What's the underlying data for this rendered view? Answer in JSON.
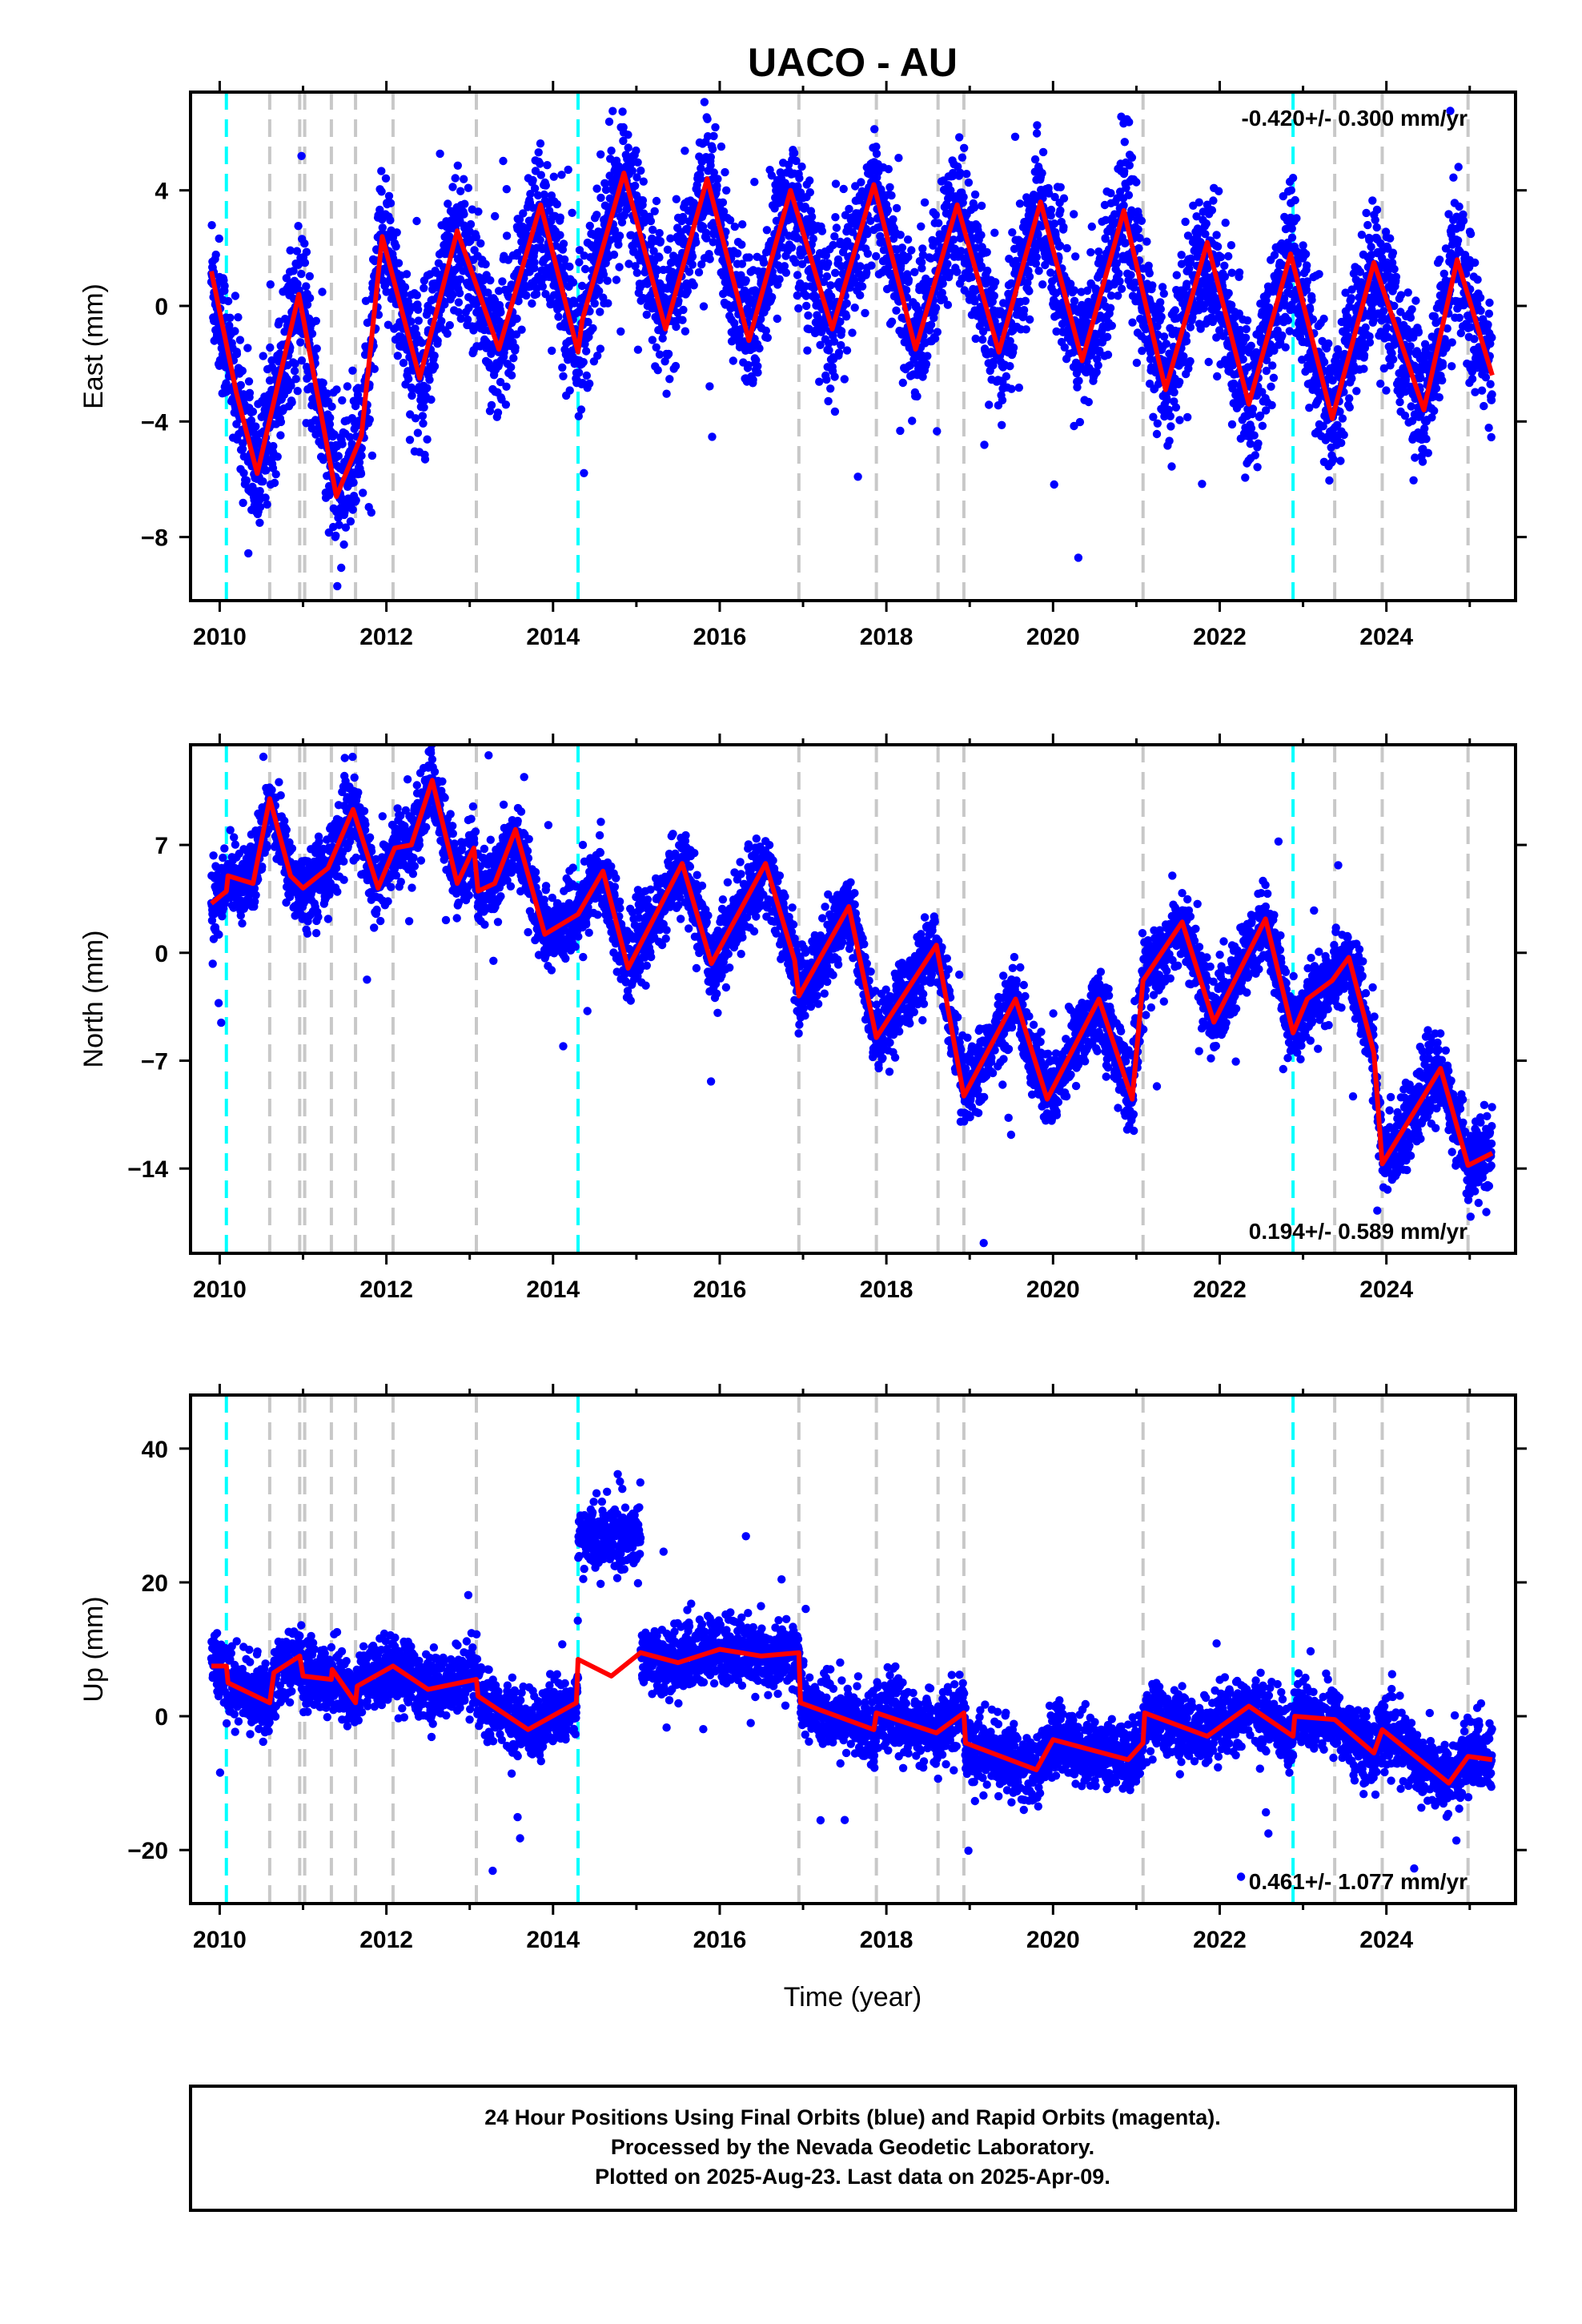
{
  "title": "UACO - AU",
  "xlabel": "Time (year)",
  "colors": {
    "final_orbits": "#0000ff",
    "model": "#ff0000",
    "antenna_change": "#00ffff",
    "other_event": "#c8c8c8"
  },
  "event_lines": {
    "cyan": [
      2010.08,
      2014.3,
      2022.88
    ],
    "gray": [
      2010.6,
      2010.96,
      2011.02,
      2011.34,
      2011.63,
      2012.08,
      2013.08,
      2016.95,
      2017.88,
      2018.62,
      2018.93,
      2021.08,
      2023.38,
      2023.95,
      2024.98
    ]
  },
  "footer": {
    "line1": "24 Hour Positions Using Final Orbits (blue) and Rapid Orbits (magenta).",
    "line2": "Processed by the Nevada Geodetic Laboratory.",
    "line3": "Plotted on 2025-Aug-23. Last data on 2025-Apr-09."
  },
  "chart_data": [
    {
      "type": "scatter",
      "ylabel": "East (mm)",
      "rate_label": "-0.420+/- 0.300 mm/yr",
      "rate_position": "top-right",
      "xlim": [
        2009.65,
        2025.55
      ],
      "ylim": [
        -10.2,
        7.4
      ],
      "x_ticks": [
        2010,
        2012,
        2014,
        2016,
        2018,
        2020,
        2022,
        2024
      ],
      "y_ticks": [
        4,
        0,
        -4,
        -8
      ],
      "y_tick_labels": [
        "4",
        "0",
        "−4",
        "−8"
      ],
      "data_span": [
        2009.9,
        2025.27
      ],
      "model_points": [
        [
          2009.9,
          1.2
        ],
        [
          2010.2,
          -3.0
        ],
        [
          2010.45,
          -5.8
        ],
        [
          2010.95,
          0.4
        ],
        [
          2011.4,
          -6.6
        ],
        [
          2011.7,
          -4.5
        ],
        [
          2011.95,
          2.4
        ],
        [
          2012.4,
          -2.5
        ],
        [
          2012.85,
          2.6
        ],
        [
          2013.35,
          -1.5
        ],
        [
          2013.85,
          3.5
        ],
        [
          2014.3,
          -1.6
        ],
        [
          2014.35,
          -0.5
        ],
        [
          2014.85,
          4.6
        ],
        [
          2015.35,
          -0.8
        ],
        [
          2015.85,
          4.4
        ],
        [
          2016.35,
          -1.2
        ],
        [
          2016.85,
          4.0
        ],
        [
          2017.35,
          -0.8
        ],
        [
          2017.85,
          4.2
        ],
        [
          2018.35,
          -1.5
        ],
        [
          2018.85,
          3.5
        ],
        [
          2019.35,
          -1.6
        ],
        [
          2019.85,
          3.6
        ],
        [
          2020.35,
          -1.9
        ],
        [
          2020.85,
          3.3
        ],
        [
          2021.35,
          -2.9
        ],
        [
          2021.85,
          2.2
        ],
        [
          2022.35,
          -3.4
        ],
        [
          2022.85,
          1.8
        ],
        [
          2023.35,
          -3.9
        ],
        [
          2023.85,
          1.5
        ],
        [
          2024.45,
          -3.6
        ],
        [
          2024.85,
          1.6
        ],
        [
          2025.27,
          -2.4
        ]
      ],
      "scatter_spread": 1.6
    },
    {
      "type": "scatter",
      "ylabel": "North (mm)",
      "rate_label": "0.194+/- 0.589 mm/yr",
      "rate_position": "bottom-right",
      "xlim": [
        2009.65,
        2025.55
      ],
      "ylim": [
        -19.5,
        13.5
      ],
      "x_ticks": [
        2010,
        2012,
        2014,
        2016,
        2018,
        2020,
        2022,
        2024
      ],
      "y_ticks": [
        7,
        0,
        -7,
        -14
      ],
      "y_tick_labels": [
        "7",
        "0",
        "−7",
        "−14"
      ],
      "data_span": [
        2009.9,
        2025.27
      ],
      "model_points": [
        [
          2009.9,
          3.2
        ],
        [
          2010.08,
          4.0
        ],
        [
          2010.1,
          5.0
        ],
        [
          2010.4,
          4.5
        ],
        [
          2010.6,
          10.0
        ],
        [
          2010.85,
          5.0
        ],
        [
          2011.0,
          4.2
        ],
        [
          2011.3,
          5.5
        ],
        [
          2011.6,
          9.3
        ],
        [
          2011.9,
          4.2
        ],
        [
          2012.1,
          6.8
        ],
        [
          2012.3,
          7.0
        ],
        [
          2012.55,
          11.2
        ],
        [
          2012.85,
          4.5
        ],
        [
          2013.05,
          6.8
        ],
        [
          2013.1,
          4.0
        ],
        [
          2013.3,
          4.5
        ],
        [
          2013.55,
          8.0
        ],
        [
          2013.9,
          1.2
        ],
        [
          2014.3,
          2.5
        ],
        [
          2014.6,
          5.3
        ],
        [
          2014.9,
          -1.0
        ],
        [
          2015.55,
          5.8
        ],
        [
          2015.9,
          -0.7
        ],
        [
          2016.55,
          5.8
        ],
        [
          2016.9,
          -0.5
        ],
        [
          2016.95,
          -2.8
        ],
        [
          2017.55,
          3.0
        ],
        [
          2017.88,
          -5.5
        ],
        [
          2018.6,
          0.5
        ],
        [
          2018.93,
          -9.3
        ],
        [
          2019.55,
          -3.0
        ],
        [
          2019.93,
          -9.5
        ],
        [
          2020.55,
          -3.0
        ],
        [
          2020.95,
          -9.5
        ],
        [
          2021.08,
          -1.8
        ],
        [
          2021.55,
          2.0
        ],
        [
          2021.93,
          -4.5
        ],
        [
          2022.55,
          2.2
        ],
        [
          2022.88,
          -5.2
        ],
        [
          2023.05,
          -3.0
        ],
        [
          2023.35,
          -1.8
        ],
        [
          2023.55,
          -0.3
        ],
        [
          2023.85,
          -6.5
        ],
        [
          2023.95,
          -13.7
        ],
        [
          2024.2,
          -11.5
        ],
        [
          2024.65,
          -7.5
        ],
        [
          2024.98,
          -13.8
        ],
        [
          2025.27,
          -13.0
        ]
      ],
      "scatter_spread": 1.6
    },
    {
      "type": "scatter",
      "ylabel": "Up (mm)",
      "rate_label": "0.461+/- 1.077 mm/yr",
      "rate_position": "bottom-right",
      "xlim": [
        2009.65,
        2025.55
      ],
      "ylim": [
        -28,
        48
      ],
      "x_ticks": [
        2010,
        2012,
        2014,
        2016,
        2018,
        2020,
        2022,
        2024
      ],
      "y_ticks": [
        40,
        20,
        0,
        -20
      ],
      "y_tick_labels": [
        "40",
        "20",
        "0",
        "−20"
      ],
      "data_span": [
        2009.9,
        2025.27
      ],
      "model_points": [
        [
          2009.9,
          7.5
        ],
        [
          2010.08,
          7.5
        ],
        [
          2010.1,
          5.0
        ],
        [
          2010.6,
          2.0
        ],
        [
          2010.65,
          6.5
        ],
        [
          2010.96,
          9.0
        ],
        [
          2011.0,
          6.0
        ],
        [
          2011.34,
          5.5
        ],
        [
          2011.35,
          7.0
        ],
        [
          2011.63,
          2.0
        ],
        [
          2011.65,
          4.5
        ],
        [
          2012.08,
          7.5
        ],
        [
          2012.5,
          4.0
        ],
        [
          2013.08,
          5.5
        ],
        [
          2013.1,
          3.0
        ],
        [
          2013.7,
          -2.0
        ],
        [
          2014.28,
          2.0
        ],
        [
          2014.3,
          8.5
        ],
        [
          2014.7,
          6.0
        ],
        [
          2015.05,
          9.5
        ],
        [
          2015.5,
          8.0
        ],
        [
          2016.0,
          10.0
        ],
        [
          2016.5,
          9.0
        ],
        [
          2016.95,
          9.5
        ],
        [
          2016.97,
          2.0
        ],
        [
          2017.85,
          -2.0
        ],
        [
          2017.88,
          0.5
        ],
        [
          2018.6,
          -2.5
        ],
        [
          2018.93,
          0.5
        ],
        [
          2018.95,
          -4.0
        ],
        [
          2019.8,
          -8.0
        ],
        [
          2020.0,
          -3.5
        ],
        [
          2020.9,
          -6.5
        ],
        [
          2021.08,
          -4.0
        ],
        [
          2021.1,
          0.5
        ],
        [
          2021.85,
          -3.0
        ],
        [
          2022.35,
          1.5
        ],
        [
          2022.88,
          -3.0
        ],
        [
          2022.9,
          0.0
        ],
        [
          2023.38,
          -0.5
        ],
        [
          2023.85,
          -5.5
        ],
        [
          2023.95,
          -2.0
        ],
        [
          2024.75,
          -10.0
        ],
        [
          2024.98,
          -6.0
        ],
        [
          2025.27,
          -6.5
        ]
      ],
      "scatter_spread": 3.3,
      "outlier_cluster": {
        "x_range": [
          2014.3,
          2015.05
        ],
        "center": 27,
        "spread": 4
      }
    }
  ]
}
